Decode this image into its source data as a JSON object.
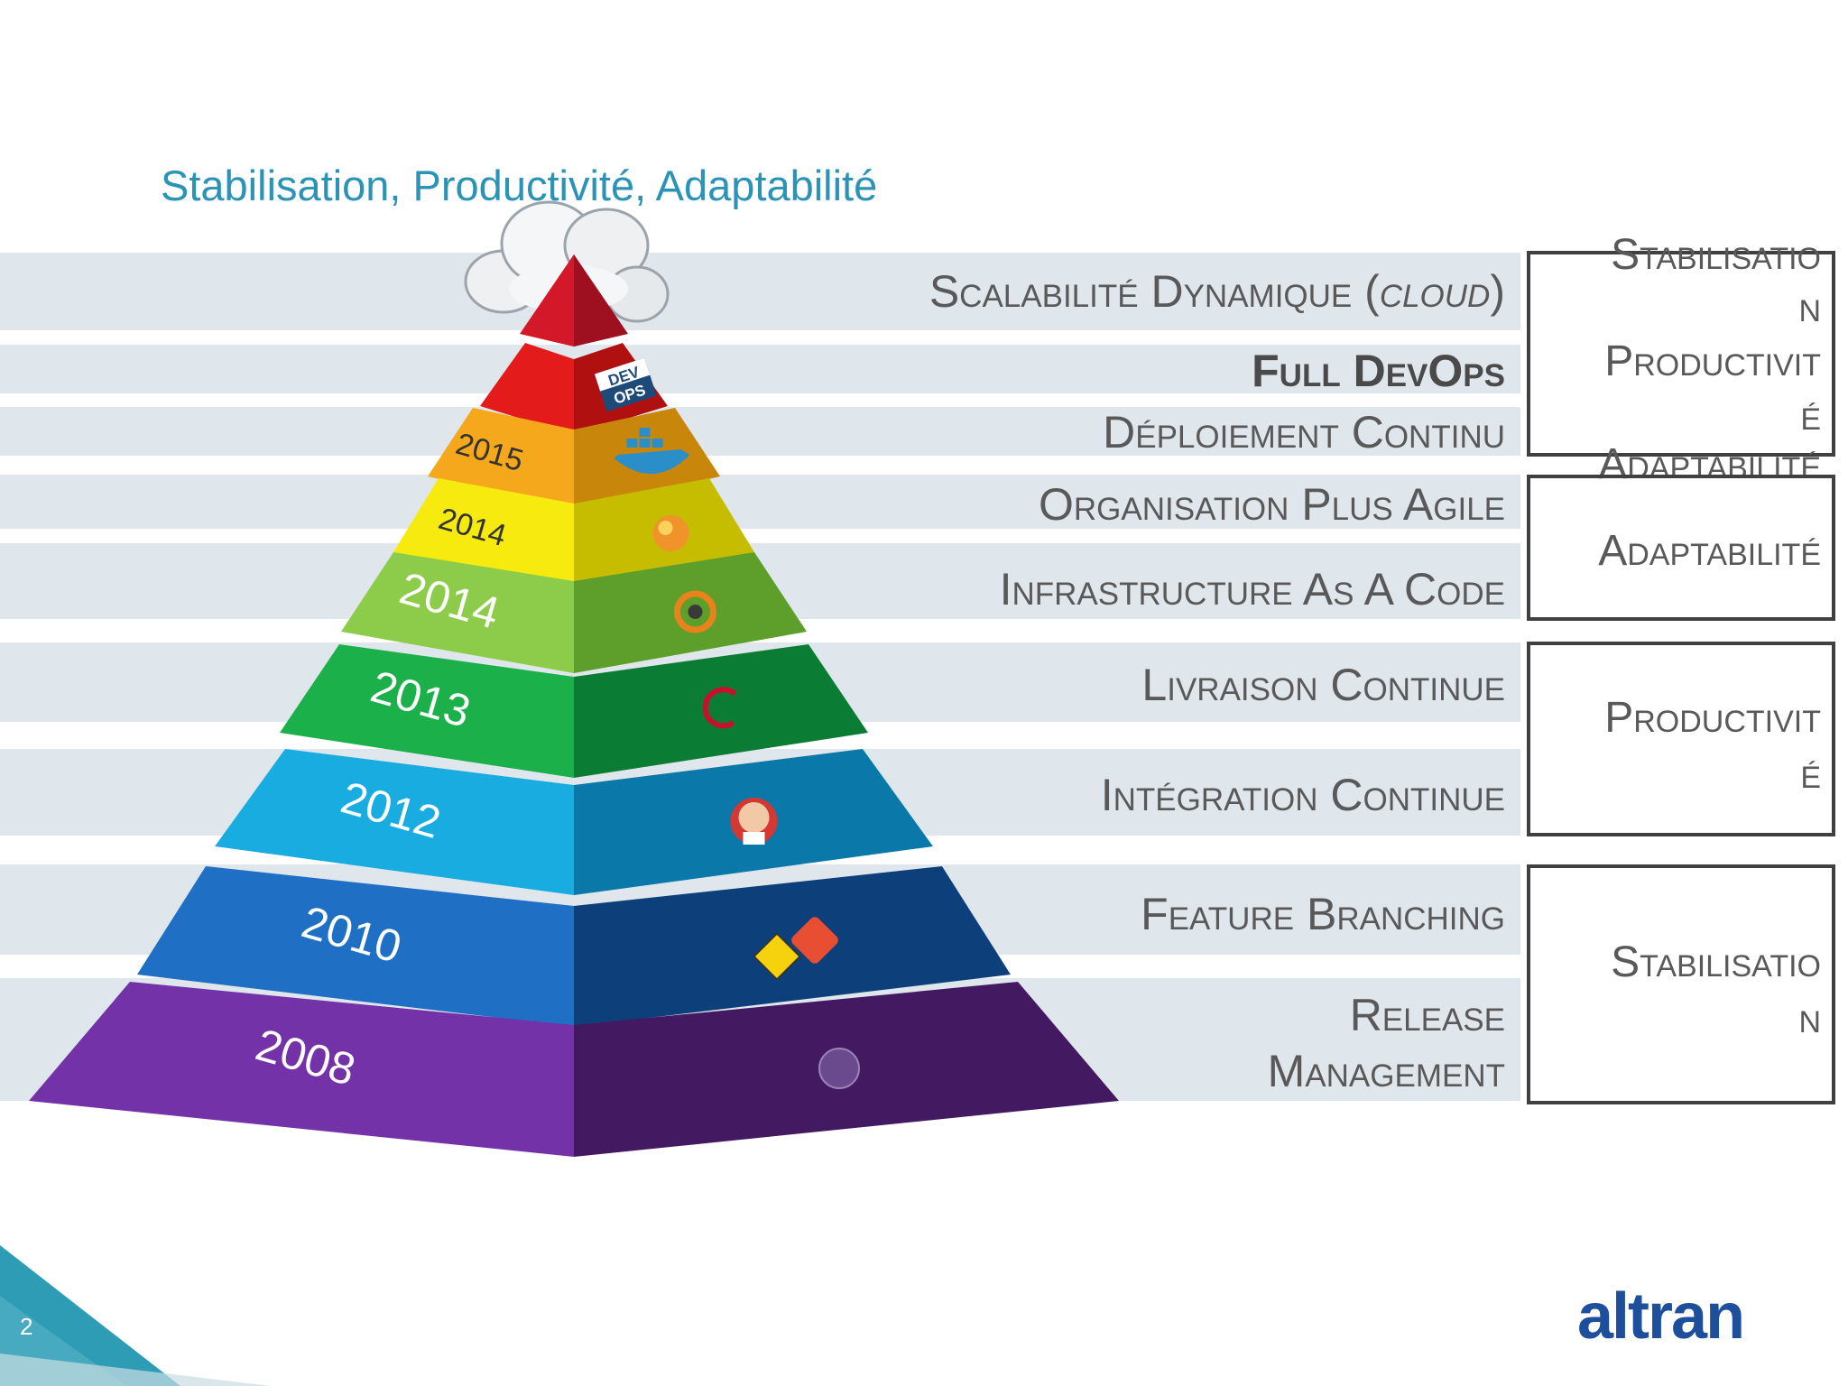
{
  "slide": {
    "title": "Stabilisation, Productivité, Adaptabilité",
    "page_number": "2",
    "logo_text": "altran"
  },
  "layers": [
    {
      "year": "",
      "label": "Scalabilité Dynamique (",
      "label_italic": "cloud",
      "label_end": ")",
      "icon": "cloud-icon",
      "front": "#d3182a",
      "side": "#9e1020"
    },
    {
      "year": "",
      "label": "Full DevOps",
      "icon": "devops-icon",
      "front": "#e31b1b",
      "side": "#b01010",
      "bold": true
    },
    {
      "year": "2015",
      "label": "Déploiement Continu",
      "icon": "docker-icon",
      "front": "#f5a81c",
      "side": "#c8860a"
    },
    {
      "year": "2014",
      "label": "Organisation Plus Agile",
      "icon": "ansible-icon",
      "front": "#f6ea0e",
      "side": "#c7bd00"
    },
    {
      "year": "2014",
      "label": "Infrastructure As A Code",
      "icon": "chef-icon",
      "front": "#8dcc4b",
      "side": "#5e9e2a"
    },
    {
      "year": "2013",
      "label": "Livraison Continue",
      "icon": "debian-icon",
      "front": "#1bb04a",
      "side": "#0b7c33"
    },
    {
      "year": "2012",
      "label": "Intégration Continue",
      "icon": "jenkins-icon",
      "front": "#18ace0",
      "side": "#0a78a8"
    },
    {
      "year": "2010",
      "label": "Feature Branching",
      "icon": "git-icon",
      "front": "#1f6fc4",
      "side": "#0d3f7a"
    },
    {
      "year": "2008",
      "label": "Release Management",
      "icon": "globe-icon",
      "front": "#7432a8",
      "side": "#431a62"
    }
  ],
  "boxes": [
    {
      "lines": [
        "Stabilisatio",
        "n",
        "Productivit",
        "é",
        "Adaptabilité"
      ]
    },
    {
      "lines": [
        "Adaptabilité"
      ]
    },
    {
      "lines": [
        "Productivit",
        "é"
      ]
    },
    {
      "lines": [
        "Stabilisatio",
        "n"
      ]
    }
  ],
  "colors": {
    "title": "#2a93b6",
    "band": "#dfe6ec",
    "label_text": "#595959",
    "box_border": "#404040",
    "corner_triangle": "#2f9cb6",
    "logo": "#1e4f9c"
  }
}
